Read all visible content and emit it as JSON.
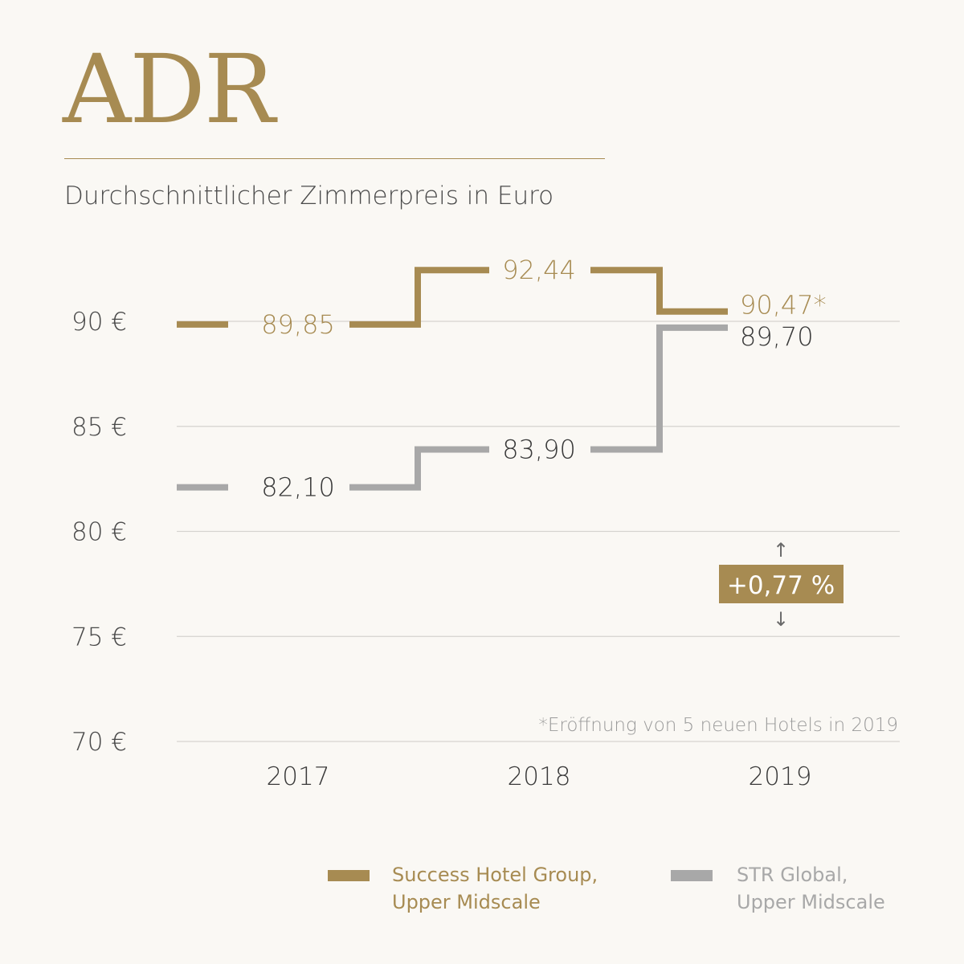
{
  "title": "ADR",
  "subtitle": "Durchschnittlicher Zimmerpreis in Euro",
  "footnote": "*Eröffnung von 5 neuen Hotels in 2019",
  "badge": "+0,77 %",
  "badge_arrows": {
    "up": "↑",
    "down": "↓"
  },
  "colors": {
    "gold": "#a78b52",
    "gray": "#a8a8a8",
    "dark": "#3a3a3a",
    "grid": "#d6d3cf",
    "footnote": "#9a9a9a"
  },
  "legend": [
    {
      "line1": "Success Hotel Group,",
      "line2": "Upper Midscale",
      "color": "#a78b52"
    },
    {
      "line1": "STR Global,",
      "line2": "Upper Midscale",
      "color": "#a8a8a8"
    }
  ],
  "chart_data": {
    "type": "line",
    "step": true,
    "x": [
      "2017",
      "2018",
      "2019"
    ],
    "y_ticks": [
      70,
      75,
      80,
      85,
      90
    ],
    "y_tick_labels": [
      "70 €",
      "75 €",
      "80 €",
      "85 €",
      "90 €"
    ],
    "ylim": [
      70,
      90
    ],
    "grid": true,
    "series": [
      {
        "name": "Success Hotel Group, Upper Midscale",
        "values": [
          89.85,
          92.44,
          90.47
        ],
        "labels": [
          "89,85",
          "92,44",
          "90,47*"
        ],
        "color": "#a78b52"
      },
      {
        "name": "STR Global, Upper Midscale",
        "values": [
          82.1,
          83.9,
          89.7
        ],
        "labels": [
          "82,10",
          "83,90",
          "89,70"
        ],
        "color": "#a8a8a8"
      }
    ]
  }
}
